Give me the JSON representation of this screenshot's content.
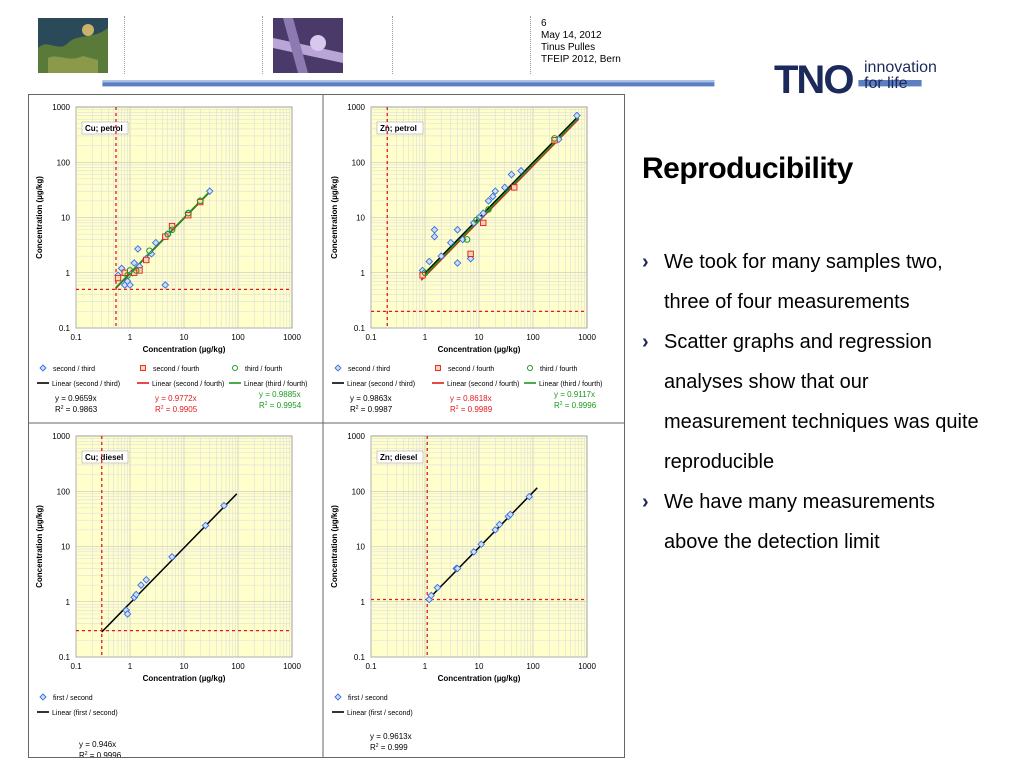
{
  "header": {
    "slide_number": "6",
    "date": "May 14, 2012",
    "author": "Tinus Pulles",
    "event": "TFEIP 2012, Bern",
    "logo_text": "TNO",
    "tagline_line1": "innovation",
    "tagline_line2": "for life",
    "thumbnail_1": "satellite-map-image",
    "thumbnail_2": "industrial-pipes-image"
  },
  "slide": {
    "title": "Reproducibility",
    "bullets": [
      "We took for many samples two, three of four measurements",
      "Scatter graphs and regression analyses show that our measurement techniques was quite reproducible",
      "We have many measurements above the detection limit"
    ]
  },
  "colors": {
    "brand": "#1b2a5b",
    "plot_bg": "#ffffcc",
    "red": "#e31a1c",
    "green": "#1a9a1a",
    "blue": "#3b6fd6"
  },
  "chart_data": [
    {
      "type": "scatter",
      "title": "Cu; petrol",
      "xlabel": "Concentration (µg/kg)",
      "ylabel": "Concentration (µg/kg)",
      "xscale": "log",
      "yscale": "log",
      "xlim": [
        0.1,
        1000
      ],
      "ylim": [
        0.1,
        1000
      ],
      "tick_labels": [
        "0.1",
        "1",
        "10",
        "100",
        "1000"
      ],
      "detection_limit": {
        "x": 0.55,
        "y": 0.5
      },
      "series": [
        {
          "name": "second / third",
          "marker": "diamond",
          "color": "#3b6fd6",
          "points": [
            [
              0.6,
              0.9
            ],
            [
              0.7,
              1.2
            ],
            [
              0.8,
              0.6
            ],
            [
              0.9,
              0.7
            ],
            [
              1.0,
              0.6
            ],
            [
              1.1,
              1.0
            ],
            [
              1.2,
              1.5
            ],
            [
              1.4,
              2.7
            ],
            [
              1.5,
              1.3
            ],
            [
              2.0,
              1.8
            ],
            [
              2.5,
              2.2
            ],
            [
              3.0,
              3.5
            ],
            [
              4.5,
              0.6
            ],
            [
              5,
              5
            ],
            [
              12,
              12
            ],
            [
              20,
              20
            ],
            [
              30,
              30
            ]
          ]
        },
        {
          "name": "second / fourth",
          "marker": "square",
          "color": "#e31a1c",
          "points": [
            [
              0.6,
              0.8
            ],
            [
              0.8,
              1.0
            ],
            [
              1.2,
              1.0
            ],
            [
              1.5,
              1.1
            ],
            [
              2.0,
              1.7
            ],
            [
              4.5,
              4.5
            ],
            [
              6,
              7
            ],
            [
              12,
              11
            ],
            [
              20,
              19
            ]
          ]
        },
        {
          "name": "third / fourth",
          "marker": "circle",
          "color": "#1a9a1a",
          "points": [
            [
              0.9,
              0.9
            ],
            [
              1.0,
              1.1
            ],
            [
              1.3,
              1.1
            ],
            [
              2.3,
              2.5
            ],
            [
              5,
              5
            ],
            [
              6,
              6
            ],
            [
              12,
              12
            ],
            [
              20,
              20
            ]
          ]
        }
      ],
      "lines": [
        {
          "name": "Linear (second / third)",
          "color": "#000000",
          "slope": 0.9659,
          "range": [
            0.55,
            30
          ]
        },
        {
          "name": "Linear (second / fourth)",
          "color": "#e31a1c",
          "slope": 0.9772,
          "range": [
            0.55,
            30
          ]
        },
        {
          "name": "Linear (third / fourth)",
          "color": "#1a9a1a",
          "slope": 0.9885,
          "range": [
            0.55,
            30
          ]
        }
      ],
      "equations": [
        {
          "eq": "y = 0.9659x",
          "r2": "= 0.9863",
          "color": "#000000"
        },
        {
          "eq": "y = 0.9772x",
          "r2": "= 0.9905",
          "color": "#e31a1c"
        },
        {
          "eq": "y = 0.9885x",
          "r2": "= 0.9954",
          "color": "#1a9a1a"
        }
      ]
    },
    {
      "type": "scatter",
      "title": "Zn; petrol",
      "xlabel": "Concentration (µg/kg)",
      "ylabel": "Concentration (µg/kg)",
      "xscale": "log",
      "yscale": "log",
      "xlim": [
        0.1,
        1000
      ],
      "ylim": [
        0.1,
        1000
      ],
      "tick_labels": [
        "0.1",
        "1",
        "10",
        "100",
        "1000"
      ],
      "detection_limit": {
        "x": 0.2,
        "y": 0.2
      },
      "series": [
        {
          "name": "second / third",
          "marker": "diamond",
          "color": "#3b6fd6",
          "points": [
            [
              0.9,
              1.1
            ],
            [
              1.2,
              1.6
            ],
            [
              1.5,
              4.5
            ],
            [
              1.5,
              6
            ],
            [
              2,
              2
            ],
            [
              3,
              3.5
            ],
            [
              4,
              1.5
            ],
            [
              4,
              6
            ],
            [
              5,
              4
            ],
            [
              7,
              1.8
            ],
            [
              8,
              8
            ],
            [
              10,
              10
            ],
            [
              12,
              12
            ],
            [
              15,
              20
            ],
            [
              18,
              24
            ],
            [
              20,
              30
            ],
            [
              30,
              35
            ],
            [
              40,
              60
            ],
            [
              60,
              70
            ],
            [
              300,
              260
            ],
            [
              650,
              700
            ]
          ]
        },
        {
          "name": "second / fourth",
          "marker": "square",
          "color": "#e31a1c",
          "points": [
            [
              0.9,
              0.9
            ],
            [
              7,
              2.2
            ],
            [
              12,
              8
            ],
            [
              45,
              35
            ],
            [
              250,
              250
            ]
          ]
        },
        {
          "name": "third / fourth",
          "marker": "circle",
          "color": "#1a9a1a",
          "points": [
            [
              1.0,
              1.0
            ],
            [
              6,
              4
            ],
            [
              9,
              9
            ],
            [
              15,
              14
            ],
            [
              250,
              270
            ]
          ]
        }
      ],
      "lines": [
        {
          "name": "Linear (second / third)",
          "color": "#000000",
          "slope": 0.9863,
          "range": [
            0.85,
            700
          ]
        },
        {
          "name": "Linear (second / fourth)",
          "color": "#e31a1c",
          "slope": 0.8618,
          "range": [
            0.85,
            700
          ]
        },
        {
          "name": "Linear (third / fourth)",
          "color": "#1a9a1a",
          "slope": 0.9117,
          "range": [
            0.85,
            700
          ]
        }
      ],
      "equations": [
        {
          "eq": "y = 0.9863x",
          "r2": "= 0.9987",
          "color": "#000000"
        },
        {
          "eq": "y = 0.8618x",
          "r2": "= 0.9989",
          "color": "#e31a1c"
        },
        {
          "eq": "y = 0.9117x",
          "r2": "= 0.9996",
          "color": "#1a9a1a"
        }
      ]
    },
    {
      "type": "scatter",
      "title": "Cu; diesel",
      "xlabel": "Concentration (µg/kg)",
      "ylabel": "Concentration (µg/kg)",
      "xscale": "log",
      "yscale": "log",
      "xlim": [
        0.1,
        1000
      ],
      "ylim": [
        0.1,
        1000
      ],
      "tick_labels": [
        "0.1",
        "1",
        "10",
        "100",
        "1000"
      ],
      "detection_limit": {
        "x": 0.3,
        "y": 0.3
      },
      "series": [
        {
          "name": "first / second",
          "marker": "diamond",
          "color": "#3b6fd6",
          "points": [
            [
              0.85,
              0.7
            ],
            [
              0.9,
              0.6
            ],
            [
              1.2,
              1.2
            ],
            [
              1.3,
              1.35
            ],
            [
              1.6,
              2
            ],
            [
              2,
              2.5
            ],
            [
              6,
              6.5
            ],
            [
              25,
              24
            ],
            [
              55,
              55
            ]
          ]
        }
      ],
      "lines": [
        {
          "name": "Linear (first / second)",
          "color": "#000000",
          "slope": 0.946,
          "range": [
            0.3,
            95
          ]
        }
      ],
      "equations": [
        {
          "eq": "y = 0.946x",
          "r2": "= 0.9996",
          "color": "#000000"
        }
      ]
    },
    {
      "type": "scatter",
      "title": "Zn; diesel",
      "xlabel": "Concentration (µg/kg)",
      "ylabel": "Concentration (µg/kg)",
      "xscale": "log",
      "yscale": "log",
      "xlim": [
        0.1,
        1000
      ],
      "ylim": [
        0.1,
        1000
      ],
      "tick_labels": [
        "0.1",
        "1",
        "10",
        "100",
        "1000"
      ],
      "detection_limit": {
        "x": 1.1,
        "y": 1.1
      },
      "series": [
        {
          "name": "first / second",
          "marker": "diamond",
          "color": "#3b6fd6",
          "points": [
            [
              1.2,
              1.1
            ],
            [
              1.3,
              1.3
            ],
            [
              1.7,
              1.8
            ],
            [
              3.8,
              4
            ],
            [
              4,
              4
            ],
            [
              8,
              8
            ],
            [
              11,
              11
            ],
            [
              20,
              20
            ],
            [
              24,
              25
            ],
            [
              35,
              35
            ],
            [
              38,
              38
            ],
            [
              85,
              80
            ]
          ]
        }
      ],
      "lines": [
        {
          "name": "Linear (first / second)",
          "color": "#000000",
          "slope": 0.9613,
          "range": [
            1.1,
            120
          ]
        }
      ],
      "equations": [
        {
          "eq": "y = 0.9613x",
          "r2": "= 0.999",
          "color": "#000000"
        }
      ]
    }
  ]
}
